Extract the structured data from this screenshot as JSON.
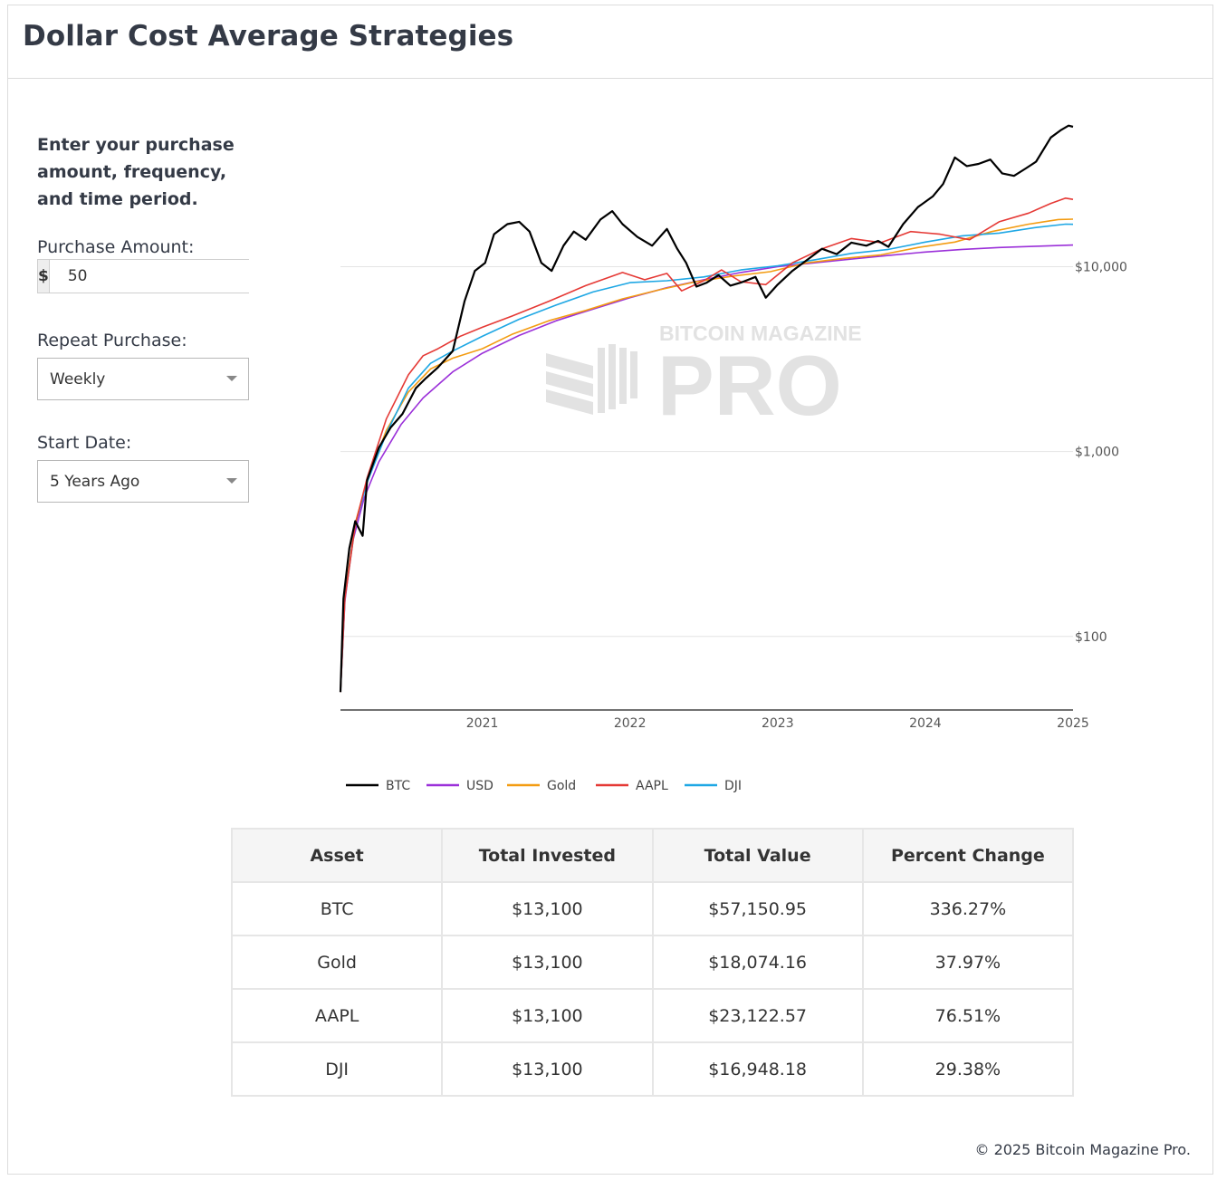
{
  "page": {
    "title": "Dollar Cost Average Strategies"
  },
  "form": {
    "intro": "Enter your purchase amount, frequency, and time period.",
    "amount_label": "Purchase Amount:",
    "currency_symbol": "$",
    "amount_value": "50",
    "repeat_label": "Repeat Purchase:",
    "repeat_value": "Weekly",
    "start_label": "Start Date:",
    "start_value": "5 Years Ago"
  },
  "watermark": {
    "line1": "BITCOIN MAGAZINE",
    "line2": "PRO"
  },
  "colors": {
    "BTC": "#000000",
    "USD": "#9b30d9",
    "Gold": "#f39c12",
    "AAPL": "#e53935",
    "DJI": "#1ea7e4"
  },
  "chart_data": {
    "type": "line",
    "title": "",
    "yscale": "log",
    "ylim": [
      40,
      70000
    ],
    "y_ticks": [
      {
        "value": 100,
        "label": "$100"
      },
      {
        "value": 1000,
        "label": "$1,000"
      },
      {
        "value": 10000,
        "label": "$10,000"
      }
    ],
    "xlim": [
      2020.04,
      2025.0
    ],
    "x_ticks": [
      {
        "value": 2021,
        "label": "2021"
      },
      {
        "value": 2022,
        "label": "2022"
      },
      {
        "value": 2023,
        "label": "2023"
      },
      {
        "value": 2024,
        "label": "2024"
      },
      {
        "value": 2025,
        "label": "2025"
      }
    ],
    "legend_position": "bottom-left",
    "series": [
      {
        "name": "BTC",
        "points": [
          [
            2020.04,
            50
          ],
          [
            2020.06,
            160
          ],
          [
            2020.1,
            300
          ],
          [
            2020.14,
            420
          ],
          [
            2020.19,
            350
          ],
          [
            2020.22,
            700
          ],
          [
            2020.3,
            1050
          ],
          [
            2020.38,
            1350
          ],
          [
            2020.46,
            1600
          ],
          [
            2020.55,
            2200
          ],
          [
            2020.62,
            2500
          ],
          [
            2020.7,
            2850
          ],
          [
            2020.8,
            3500
          ],
          [
            2020.88,
            6500
          ],
          [
            2020.95,
            9500
          ],
          [
            2021.02,
            10500
          ],
          [
            2021.08,
            15000
          ],
          [
            2021.17,
            17000
          ],
          [
            2021.25,
            17500
          ],
          [
            2021.32,
            15500
          ],
          [
            2021.4,
            10500
          ],
          [
            2021.47,
            9500
          ],
          [
            2021.55,
            13000
          ],
          [
            2021.62,
            15500
          ],
          [
            2021.7,
            14000
          ],
          [
            2021.8,
            18000
          ],
          [
            2021.88,
            20000
          ],
          [
            2021.95,
            17000
          ],
          [
            2022.05,
            14500
          ],
          [
            2022.15,
            13000
          ],
          [
            2022.25,
            16000
          ],
          [
            2022.32,
            12500
          ],
          [
            2022.38,
            10500
          ],
          [
            2022.45,
            7800
          ],
          [
            2022.52,
            8200
          ],
          [
            2022.6,
            9000
          ],
          [
            2022.68,
            7900
          ],
          [
            2022.75,
            8200
          ],
          [
            2022.85,
            8800
          ],
          [
            2022.92,
            6800
          ],
          [
            2023.0,
            8000
          ],
          [
            2023.1,
            9500
          ],
          [
            2023.22,
            11200
          ],
          [
            2023.3,
            12500
          ],
          [
            2023.4,
            11700
          ],
          [
            2023.5,
            13500
          ],
          [
            2023.6,
            13000
          ],
          [
            2023.68,
            13800
          ],
          [
            2023.75,
            12800
          ],
          [
            2023.85,
            17000
          ],
          [
            2023.95,
            21000
          ],
          [
            2024.05,
            24000
          ],
          [
            2024.12,
            28000
          ],
          [
            2024.2,
            39000
          ],
          [
            2024.28,
            35000
          ],
          [
            2024.36,
            36000
          ],
          [
            2024.44,
            38000
          ],
          [
            2024.52,
            32000
          ],
          [
            2024.6,
            31000
          ],
          [
            2024.68,
            34000
          ],
          [
            2024.75,
            37000
          ],
          [
            2024.85,
            50000
          ],
          [
            2024.92,
            55000
          ],
          [
            2024.97,
            58000
          ],
          [
            2025.0,
            57150.95
          ]
        ]
      },
      {
        "name": "USD",
        "points": [
          [
            2020.04,
            50
          ],
          [
            2020.07,
            155
          ],
          [
            2020.12,
            320
          ],
          [
            2020.2,
            560
          ],
          [
            2020.3,
            880
          ],
          [
            2020.45,
            1400
          ],
          [
            2020.6,
            1950
          ],
          [
            2020.8,
            2700
          ],
          [
            2021.0,
            3400
          ],
          [
            2021.25,
            4250
          ],
          [
            2021.5,
            5100
          ],
          [
            2021.75,
            5900
          ],
          [
            2022.0,
            6800
          ],
          [
            2022.25,
            7700
          ],
          [
            2022.5,
            8500
          ],
          [
            2022.75,
            9300
          ],
          [
            2023.0,
            10000
          ],
          [
            2023.25,
            10500
          ],
          [
            2023.5,
            11000
          ],
          [
            2023.75,
            11500
          ],
          [
            2024.0,
            12000
          ],
          [
            2024.25,
            12400
          ],
          [
            2024.5,
            12700
          ],
          [
            2024.75,
            12900
          ],
          [
            2025.0,
            13100
          ]
        ]
      },
      {
        "name": "Gold",
        "points": [
          [
            2020.04,
            50
          ],
          [
            2020.07,
            165
          ],
          [
            2020.14,
            410
          ],
          [
            2020.22,
            700
          ],
          [
            2020.35,
            1300
          ],
          [
            2020.5,
            2100
          ],
          [
            2020.65,
            2800
          ],
          [
            2020.8,
            3200
          ],
          [
            2021.0,
            3600
          ],
          [
            2021.2,
            4300
          ],
          [
            2021.45,
            5100
          ],
          [
            2021.7,
            5800
          ],
          [
            2021.95,
            6700
          ],
          [
            2022.2,
            7500
          ],
          [
            2022.45,
            8300
          ],
          [
            2022.7,
            8900
          ],
          [
            2022.95,
            9400
          ],
          [
            2023.2,
            10500
          ],
          [
            2023.45,
            11100
          ],
          [
            2023.7,
            11600
          ],
          [
            2023.95,
            12700
          ],
          [
            2024.2,
            13600
          ],
          [
            2024.45,
            15500
          ],
          [
            2024.7,
            17000
          ],
          [
            2024.9,
            18000
          ],
          [
            2025.0,
            18074.16
          ]
        ]
      },
      {
        "name": "AAPL",
        "points": [
          [
            2020.04,
            50
          ],
          [
            2020.07,
            160
          ],
          [
            2020.14,
            400
          ],
          [
            2020.22,
            720
          ],
          [
            2020.35,
            1500
          ],
          [
            2020.5,
            2600
          ],
          [
            2020.6,
            3300
          ],
          [
            2020.7,
            3600
          ],
          [
            2020.85,
            4200
          ],
          [
            2021.0,
            4700
          ],
          [
            2021.2,
            5400
          ],
          [
            2021.45,
            6500
          ],
          [
            2021.7,
            7900
          ],
          [
            2021.95,
            9300
          ],
          [
            2022.1,
            8500
          ],
          [
            2022.25,
            9200
          ],
          [
            2022.35,
            7400
          ],
          [
            2022.5,
            8400
          ],
          [
            2022.62,
            9600
          ],
          [
            2022.75,
            8300
          ],
          [
            2022.92,
            8000
          ],
          [
            2023.1,
            10500
          ],
          [
            2023.3,
            12500
          ],
          [
            2023.5,
            14200
          ],
          [
            2023.7,
            13500
          ],
          [
            2023.9,
            15500
          ],
          [
            2024.1,
            15000
          ],
          [
            2024.3,
            14000
          ],
          [
            2024.5,
            17500
          ],
          [
            2024.7,
            19500
          ],
          [
            2024.85,
            22000
          ],
          [
            2024.95,
            23500
          ],
          [
            2025.0,
            23122.57
          ]
        ]
      },
      {
        "name": "DJI",
        "points": [
          [
            2020.04,
            50
          ],
          [
            2020.07,
            160
          ],
          [
            2020.14,
            400
          ],
          [
            2020.22,
            680
          ],
          [
            2020.35,
            1250
          ],
          [
            2020.5,
            2200
          ],
          [
            2020.65,
            3000
          ],
          [
            2020.8,
            3500
          ],
          [
            2021.0,
            4200
          ],
          [
            2021.25,
            5200
          ],
          [
            2021.5,
            6200
          ],
          [
            2021.75,
            7300
          ],
          [
            2022.0,
            8200
          ],
          [
            2022.25,
            8400
          ],
          [
            2022.5,
            8800
          ],
          [
            2022.75,
            9600
          ],
          [
            2023.0,
            10100
          ],
          [
            2023.25,
            10900
          ],
          [
            2023.5,
            11800
          ],
          [
            2023.75,
            12400
          ],
          [
            2024.0,
            13600
          ],
          [
            2024.25,
            14700
          ],
          [
            2024.5,
            15200
          ],
          [
            2024.75,
            16300
          ],
          [
            2024.95,
            17000
          ],
          [
            2025.0,
            16948.18
          ]
        ]
      }
    ]
  },
  "table": {
    "headers": [
      "Asset",
      "Total Invested",
      "Total Value",
      "Percent Change"
    ],
    "rows": [
      [
        "BTC",
        "$13,100",
        "$57,150.95",
        "336.27%"
      ],
      [
        "Gold",
        "$13,100",
        "$18,074.16",
        "37.97%"
      ],
      [
        "AAPL",
        "$13,100",
        "$23,122.57",
        "76.51%"
      ],
      [
        "DJI",
        "$13,100",
        "$16,948.18",
        "29.38%"
      ]
    ]
  },
  "footer": {
    "copyright": "© 2025 Bitcoin Magazine Pro."
  }
}
